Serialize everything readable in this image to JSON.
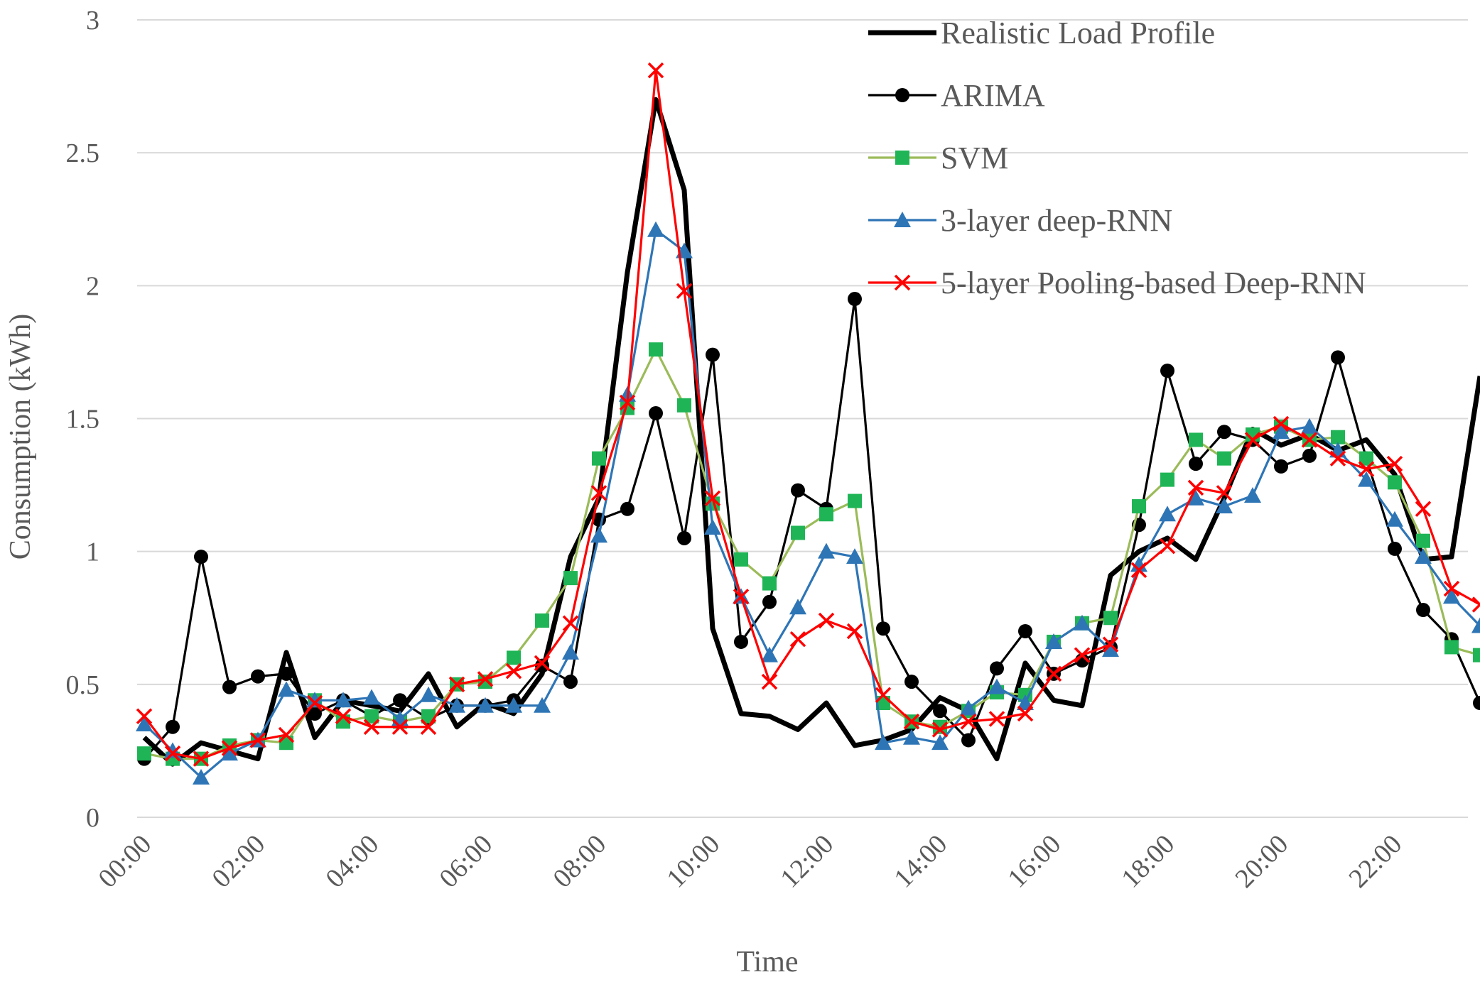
{
  "chart_data": {
    "type": "line",
    "xlabel": "Time",
    "ylabel": "Consumption (kWh)",
    "ylim": [
      0,
      3
    ],
    "yticks": [
      "0",
      "0.5",
      "1",
      "1.5",
      "2",
      "2.5",
      "3"
    ],
    "xtick_labels": [
      "00:00",
      "02:00",
      "04:00",
      "06:00",
      "08:00",
      "10:00",
      "12:00",
      "14:00",
      "16:00",
      "18:00",
      "20:00",
      "22:00"
    ],
    "x_step_hours": 0.5,
    "grid": "horizontal",
    "legend_position": "top-right",
    "series": [
      {
        "name": "Realistic Load Profile",
        "color": "#000000",
        "marker": "none",
        "values": [
          0.3,
          0.2,
          0.28,
          0.25,
          0.22,
          0.62,
          0.3,
          0.44,
          0.42,
          0.4,
          0.54,
          0.34,
          0.43,
          0.39,
          0.54,
          0.98,
          1.2,
          2.05,
          2.7,
          2.36,
          0.71,
          0.39,
          0.38,
          0.33,
          0.43,
          0.27,
          0.29,
          0.33,
          0.45,
          0.4,
          0.22,
          0.58,
          0.44,
          0.42,
          0.91,
          1.0,
          1.05,
          0.97,
          1.2,
          1.46,
          1.4,
          1.44,
          1.38,
          1.42,
          1.29,
          0.97,
          0.98,
          1.66
        ]
      },
      {
        "name": "ARIMA",
        "color": "#000000",
        "marker": "circle",
        "values": [
          0.22,
          0.34,
          0.98,
          0.49,
          0.53,
          0.54,
          0.39,
          0.44,
          0.38,
          0.44,
          0.37,
          0.42,
          0.42,
          0.44,
          0.57,
          0.51,
          1.12,
          1.16,
          1.52,
          1.05,
          1.74,
          0.66,
          0.81,
          1.23,
          1.16,
          1.95,
          0.71,
          0.51,
          0.4,
          0.29,
          0.56,
          0.7,
          0.54,
          0.59,
          0.64,
          1.1,
          1.68,
          1.33,
          1.45,
          1.42,
          1.32,
          1.36,
          1.73,
          1.35,
          1.01,
          0.78,
          0.67,
          0.43
        ]
      },
      {
        "name": "SVM",
        "color": "#9bbb59",
        "marker_color": "#1fb556",
        "marker": "square",
        "values": [
          0.24,
          0.22,
          0.22,
          0.27,
          0.29,
          0.28,
          0.44,
          0.36,
          0.38,
          0.36,
          0.38,
          0.5,
          0.51,
          0.6,
          0.74,
          0.9,
          1.35,
          1.54,
          1.76,
          1.55,
          1.18,
          0.97,
          0.88,
          1.07,
          1.14,
          1.19,
          0.43,
          0.36,
          0.34,
          0.4,
          0.47,
          0.46,
          0.66,
          0.73,
          0.75,
          1.17,
          1.27,
          1.42,
          1.35,
          1.44,
          1.47,
          1.42,
          1.43,
          1.35,
          1.26,
          1.04,
          0.64,
          0.61
        ]
      },
      {
        "name": "3-layer deep-RNN",
        "color": "#2e75b6",
        "marker": "triangle",
        "values": [
          0.35,
          0.25,
          0.15,
          0.24,
          0.29,
          0.48,
          0.44,
          0.44,
          0.45,
          0.37,
          0.46,
          0.42,
          0.42,
          0.42,
          0.42,
          0.62,
          1.06,
          1.59,
          2.21,
          2.13,
          1.09,
          0.83,
          0.61,
          0.79,
          1.0,
          0.98,
          0.28,
          0.3,
          0.28,
          0.41,
          0.49,
          0.43,
          0.66,
          0.73,
          0.63,
          0.95,
          1.14,
          1.2,
          1.17,
          1.21,
          1.45,
          1.47,
          1.38,
          1.27,
          1.12,
          0.98,
          0.83,
          0.72
        ]
      },
      {
        "name": "5-layer Pooling-based Deep-RNN",
        "color": "#ff0000",
        "marker": "x",
        "values": [
          0.38,
          0.24,
          0.22,
          0.26,
          0.29,
          0.31,
          0.43,
          0.38,
          0.34,
          0.34,
          0.34,
          0.5,
          0.52,
          0.55,
          0.58,
          0.73,
          1.22,
          1.56,
          2.81,
          1.98,
          1.2,
          0.83,
          0.51,
          0.67,
          0.74,
          0.7,
          0.46,
          0.36,
          0.33,
          0.36,
          0.37,
          0.39,
          0.54,
          0.61,
          0.65,
          0.93,
          1.02,
          1.24,
          1.22,
          1.42,
          1.48,
          1.42,
          1.35,
          1.31,
          1.33,
          1.16,
          0.86,
          0.8
        ]
      }
    ]
  }
}
